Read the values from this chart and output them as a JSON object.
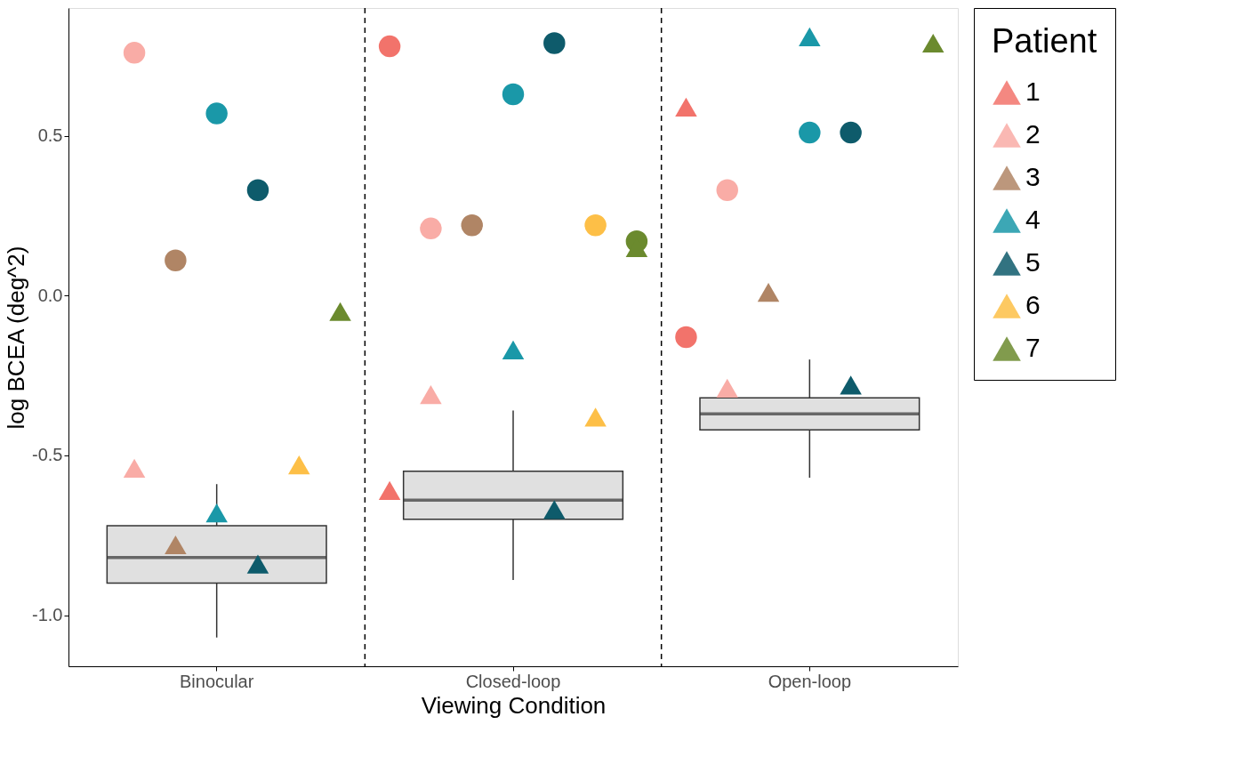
{
  "chart_data": {
    "type": "box",
    "xlabel": "Viewing Condition",
    "ylabel": "log BCEA (deg^2)",
    "legend_title": "Patient",
    "categories": [
      "Binocular",
      "Closed-loop",
      "Open-loop"
    ],
    "ylim": [
      -1.16,
      0.9
    ],
    "yticks": [
      {
        "value": -1,
        "label": "-1.0"
      },
      -0.5,
      {
        "value": 0,
        "label": "0.0"
      },
      0.5
    ],
    "grid": false,
    "legend": "right",
    "color": "#e0e0e0",
    "boxes": [
      {
        "low": -1.07,
        "q1": -0.9,
        "median": -0.82,
        "q3": -0.72,
        "high": -0.59
      },
      {
        "low": -0.89,
        "q1": -0.7,
        "median": -0.64,
        "q3": -0.55,
        "high": -0.36
      },
      {
        "low": -0.57,
        "q1": -0.42,
        "median": -0.37,
        "q3": -0.32,
        "high": -0.2
      }
    ],
    "series": [
      {
        "type": "scatter",
        "color": "#f2736b",
        "marker": "circle",
        "x": [
          "Closed-loop",
          "Open-loop"
        ],
        "values": [
          0.78,
          -0.13
        ]
      },
      {
        "type": "scatter",
        "name": "1",
        "color": "#f2736b",
        "marker": "triangle",
        "x": [
          "Closed-loop",
          "Open-loop"
        ],
        "values": [
          -0.61,
          0.59
        ]
      },
      {
        "type": "scatter",
        "color": "#f9aca6",
        "marker": "circle",
        "x": [
          "Binocular",
          "Closed-loop",
          "Open-loop"
        ],
        "values": [
          0.76,
          0.21,
          0.33
        ]
      },
      {
        "type": "scatter",
        "name": "2",
        "color": "#f9aca6",
        "marker": "triangle",
        "x": [
          "Binocular",
          "Closed-loop",
          "Open-loop"
        ],
        "values": [
          -0.54,
          -0.31,
          -0.29
        ]
      },
      {
        "type": "scatter",
        "color": "#b08565",
        "marker": "circle",
        "x": [
          "Binocular",
          "Closed-loop"
        ],
        "values": [
          0.11,
          0.22
        ]
      },
      {
        "type": "scatter",
        "name": "3",
        "color": "#b08565",
        "marker": "triangle",
        "x": [
          "Binocular",
          "Open-loop"
        ],
        "values": [
          -0.78,
          0.01
        ]
      },
      {
        "type": "scatter",
        "color": "#1a98a8",
        "marker": "circle",
        "x": [
          "Binocular",
          "Closed-loop",
          "Open-loop"
        ],
        "values": [
          0.57,
          0.63,
          0.51
        ]
      },
      {
        "type": "scatter",
        "name": "4",
        "color": "#1a98a8",
        "marker": "triangle",
        "x": [
          "Binocular",
          "Closed-loop",
          "Open-loop"
        ],
        "values": [
          -0.68,
          -0.17,
          0.81
        ]
      },
      {
        "type": "scatter",
        "color": "#0e5b6b",
        "marker": "circle",
        "x": [
          "Binocular",
          "Closed-loop",
          "Open-loop"
        ],
        "values": [
          0.33,
          0.79,
          0.51
        ]
      },
      {
        "type": "scatter",
        "name": "5",
        "color": "#0e5b6b",
        "marker": "triangle",
        "x": [
          "Binocular",
          "Closed-loop",
          "Open-loop"
        ],
        "values": [
          -0.84,
          -0.67,
          -0.28
        ]
      },
      {
        "type": "scatter",
        "color": "#fdbf47",
        "marker": "circle",
        "x": [
          "Closed-loop"
        ],
        "values": [
          0.22
        ]
      },
      {
        "type": "scatter",
        "name": "6",
        "color": "#fdbf47",
        "marker": "triangle",
        "x": [
          "Binocular",
          "Closed-loop"
        ],
        "values": [
          -0.53,
          -0.38
        ]
      },
      {
        "type": "scatter",
        "color": "#6b8a2e",
        "marker": "circle",
        "x": [
          "Closed-loop"
        ],
        "values": [
          0.17
        ]
      },
      {
        "type": "scatter",
        "name": "7",
        "color": "#6b8a2e",
        "marker": "triangle",
        "x": [
          "Binocular",
          "Closed-loop",
          "Open-loop"
        ],
        "values": [
          -0.05,
          0.15,
          0.79
        ]
      }
    ]
  }
}
